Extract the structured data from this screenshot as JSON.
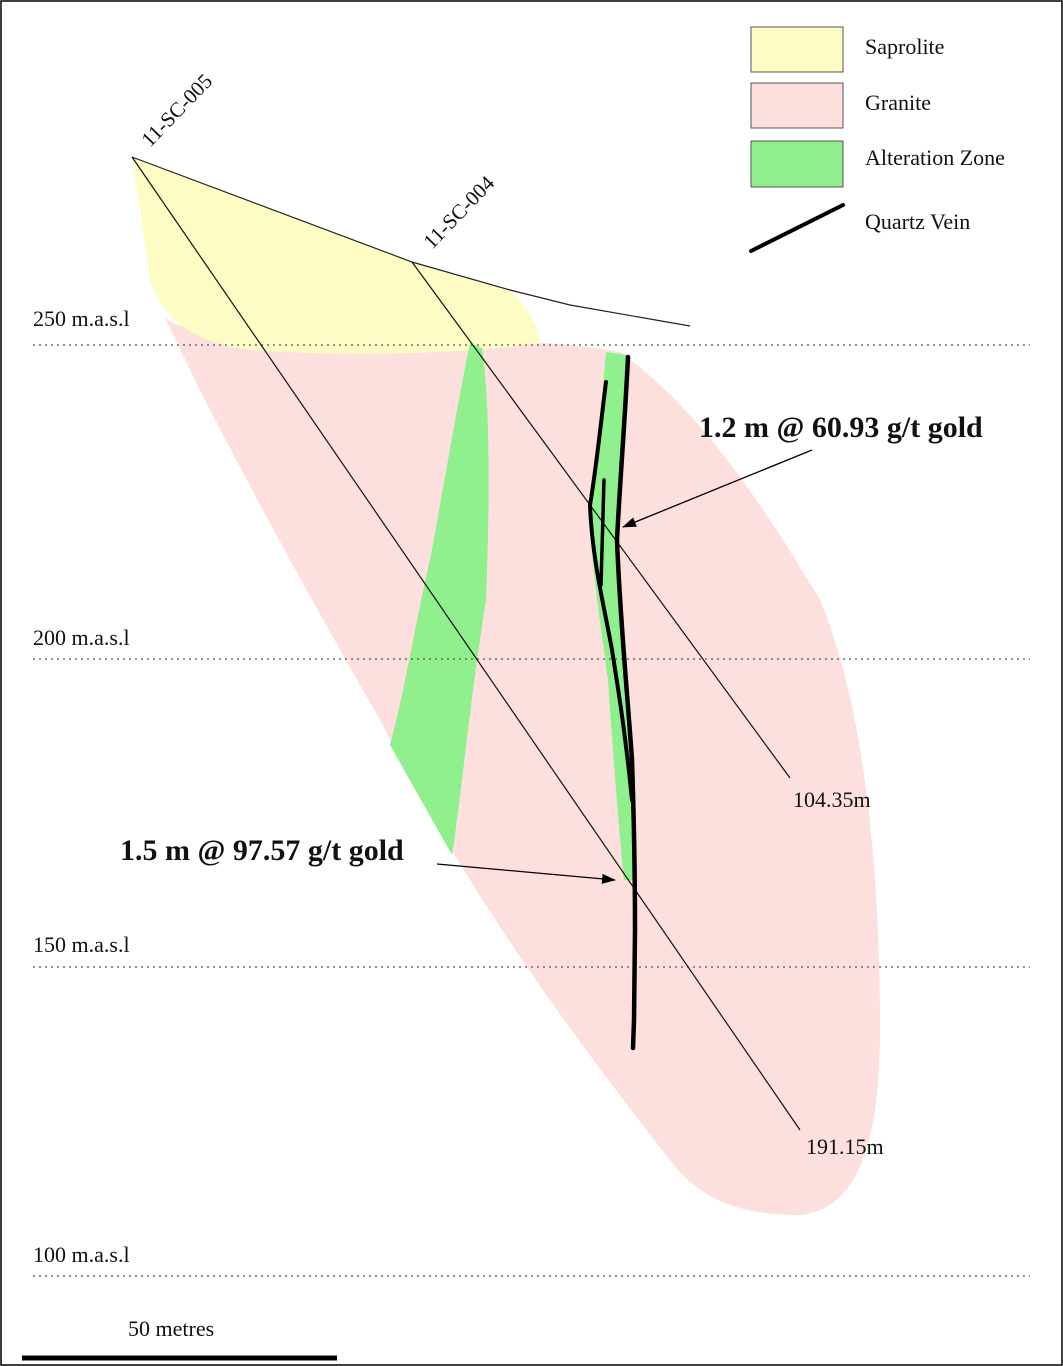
{
  "colors": {
    "saprolite": "#fdfcc4",
    "granite": "#fde0dd",
    "alteration": "#90f08e",
    "quartz_vein": "#000000",
    "border": "#000000"
  },
  "legend": {
    "items": [
      {
        "label": "Saprolite",
        "kind": "swatch",
        "color": "#fdfcc4"
      },
      {
        "label": "Granite",
        "kind": "swatch",
        "color": "#fde0dd"
      },
      {
        "label": "Alteration Zone",
        "kind": "swatch",
        "color": "#90f08e"
      },
      {
        "label": "Quartz Vein",
        "kind": "line",
        "color": "#000000"
      }
    ]
  },
  "elevations": [
    {
      "label": "250 m.a.s.l"
    },
    {
      "label": "200 m.a.s.l"
    },
    {
      "label": "150 m.a.s.l"
    },
    {
      "label": "100 m.a.s.l"
    }
  ],
  "drillholes": [
    {
      "name": "11-SC-005",
      "end_depth": "191.15m"
    },
    {
      "name": "11-SC-004",
      "end_depth": "104.35m"
    }
  ],
  "intercepts": [
    {
      "text": "1.2 m @ 60.93 g/t gold",
      "hole": "11-SC-004"
    },
    {
      "text": "1.5 m @ 97.57 g/t gold",
      "hole": "11-SC-005"
    }
  ],
  "scale_bar": {
    "label": "50 metres"
  }
}
